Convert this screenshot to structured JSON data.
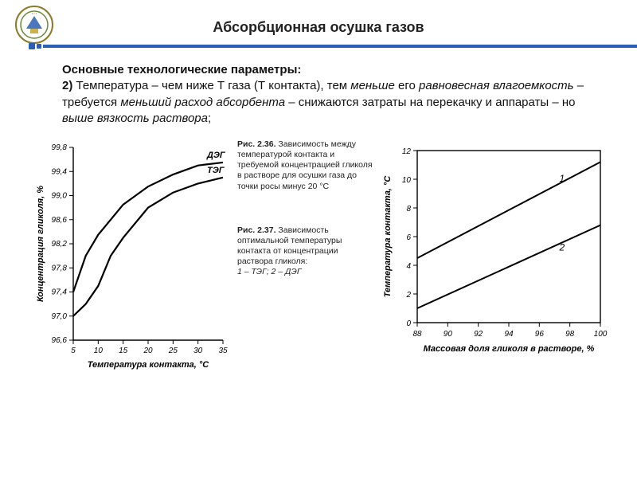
{
  "page": {
    "title": "Абсорбционная осушка газов",
    "lead": "Основные технологические параметры:",
    "para_prefix": "2) ",
    "para_a": "Температура – чем ниже Т газа (Т контакта), тем ",
    "para_b": "меньше",
    "para_c": " его ",
    "para_d": "равновесная влагоемкость",
    "para_e": " – требуется ",
    "para_f": "меньший расход абсорбента",
    "para_g": " – снижаются затраты на перекачку и аппараты – но ",
    "para_h": "выше вязкость раствора",
    "para_i": ";"
  },
  "chart1": {
    "type": "line",
    "title": "",
    "xlabel": "Температура контакта, °C",
    "ylabel": "Концентрация гликоля, %",
    "xlim": [
      5,
      35
    ],
    "xtick_step": 5,
    "ylim": [
      96.6,
      99.8
    ],
    "yticks": [
      96.6,
      97.0,
      97.4,
      97.8,
      98.2,
      98.6,
      99.0,
      99.4,
      99.8
    ],
    "label_fontsize": 11,
    "tick_fontsize": 10,
    "line_color": "#000000",
    "line_width": 2.2,
    "background_color": "#ffffff",
    "series": [
      {
        "label": "ДЭГ",
        "points": [
          [
            5,
            97.4
          ],
          [
            7.5,
            98.0
          ],
          [
            10,
            98.35
          ],
          [
            15,
            98.85
          ],
          [
            20,
            99.15
          ],
          [
            25,
            99.35
          ],
          [
            30,
            99.5
          ],
          [
            35,
            99.55
          ]
        ]
      },
      {
        "label": "ТЭГ",
        "points": [
          [
            5,
            97.0
          ],
          [
            7.5,
            97.2
          ],
          [
            10,
            97.5
          ],
          [
            12.5,
            98.0
          ],
          [
            15,
            98.3
          ],
          [
            20,
            98.8
          ],
          [
            25,
            99.05
          ],
          [
            30,
            99.2
          ],
          [
            35,
            99.3
          ]
        ]
      }
    ]
  },
  "caption1": {
    "head": "Рис. 2.36.",
    "text": " Зависимость между температурой контакта и требуемой концентрацией гликоля в растворе для осушки газа до точки росы минус 20 °С"
  },
  "caption2": {
    "head": "Рис. 2.37.",
    "text": " Зависимость оптимальной температуры контакта от концентрации раствора гликоля:",
    "legend": "1 – ТЭГ; 2 – ДЭГ"
  },
  "chart2": {
    "type": "line",
    "xlabel": "Массовая доля гликоля в растворе, %",
    "ylabel": "Температура контакта, °C",
    "xlim": [
      88,
      100
    ],
    "xtick_step": 2,
    "ylim": [
      0,
      12
    ],
    "ytick_step": 2,
    "label_fontsize": 11,
    "tick_fontsize": 10,
    "line_color": "#000000",
    "line_width": 2.0,
    "background_color": "#ffffff",
    "series": [
      {
        "label": "1",
        "points": [
          [
            88,
            4.5
          ],
          [
            100,
            11.2
          ]
        ],
        "label_pos": [
          97,
          10.6
        ]
      },
      {
        "label": "2",
        "points": [
          [
            88,
            1.0
          ],
          [
            100,
            6.8
          ]
        ],
        "label_pos": [
          97,
          5.8
        ]
      }
    ]
  }
}
